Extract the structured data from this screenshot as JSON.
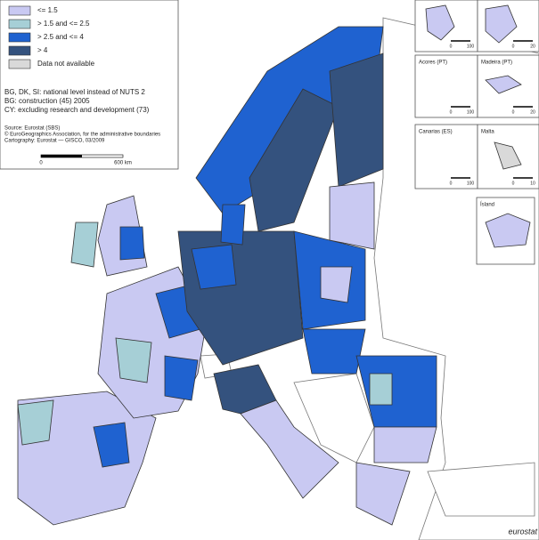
{
  "legend": {
    "items": [
      {
        "label": "<= 1.5",
        "color": "#c9c9f2"
      },
      {
        "label": "> 1.5  and <= 2.5",
        "color": "#a6cfd6"
      },
      {
        "label": "> 2.5  and <= 4",
        "color": "#1f62d0"
      },
      {
        "label": "> 4",
        "color": "#34527e"
      },
      {
        "label": "Data not available",
        "color": "#d9d9d9"
      }
    ]
  },
  "notes": [
    "BG, DK, SI: national level instead of NUTS 2",
    "BG: construction (45) 2005",
    "CY: excluding research and development (73)"
  ],
  "source": [
    "Source: Eurostat (SBS)",
    "© EuroGeographics Association, for the administrative boundaries",
    "Cartography: Eurostat — GISCO, 03/2009"
  ],
  "scale": [
    "0",
    "600 km"
  ],
  "insets": [
    {
      "scale": [
        "0",
        "100"
      ]
    },
    {
      "scale": [
        "0",
        "20"
      ]
    },
    {
      "label": "Acores (PT)",
      "scale": [
        "0",
        "100"
      ]
    },
    {
      "label": "Madeira (PT)",
      "scale": [
        "0",
        "20"
      ]
    },
    {
      "label": "Canarias (ES)",
      "scale": [
        "0",
        "100"
      ]
    },
    {
      "label": "Malta",
      "scale": [
        "0",
        "10"
      ]
    },
    {
      "label": "Ísland"
    }
  ],
  "logo": "eurostat"
}
